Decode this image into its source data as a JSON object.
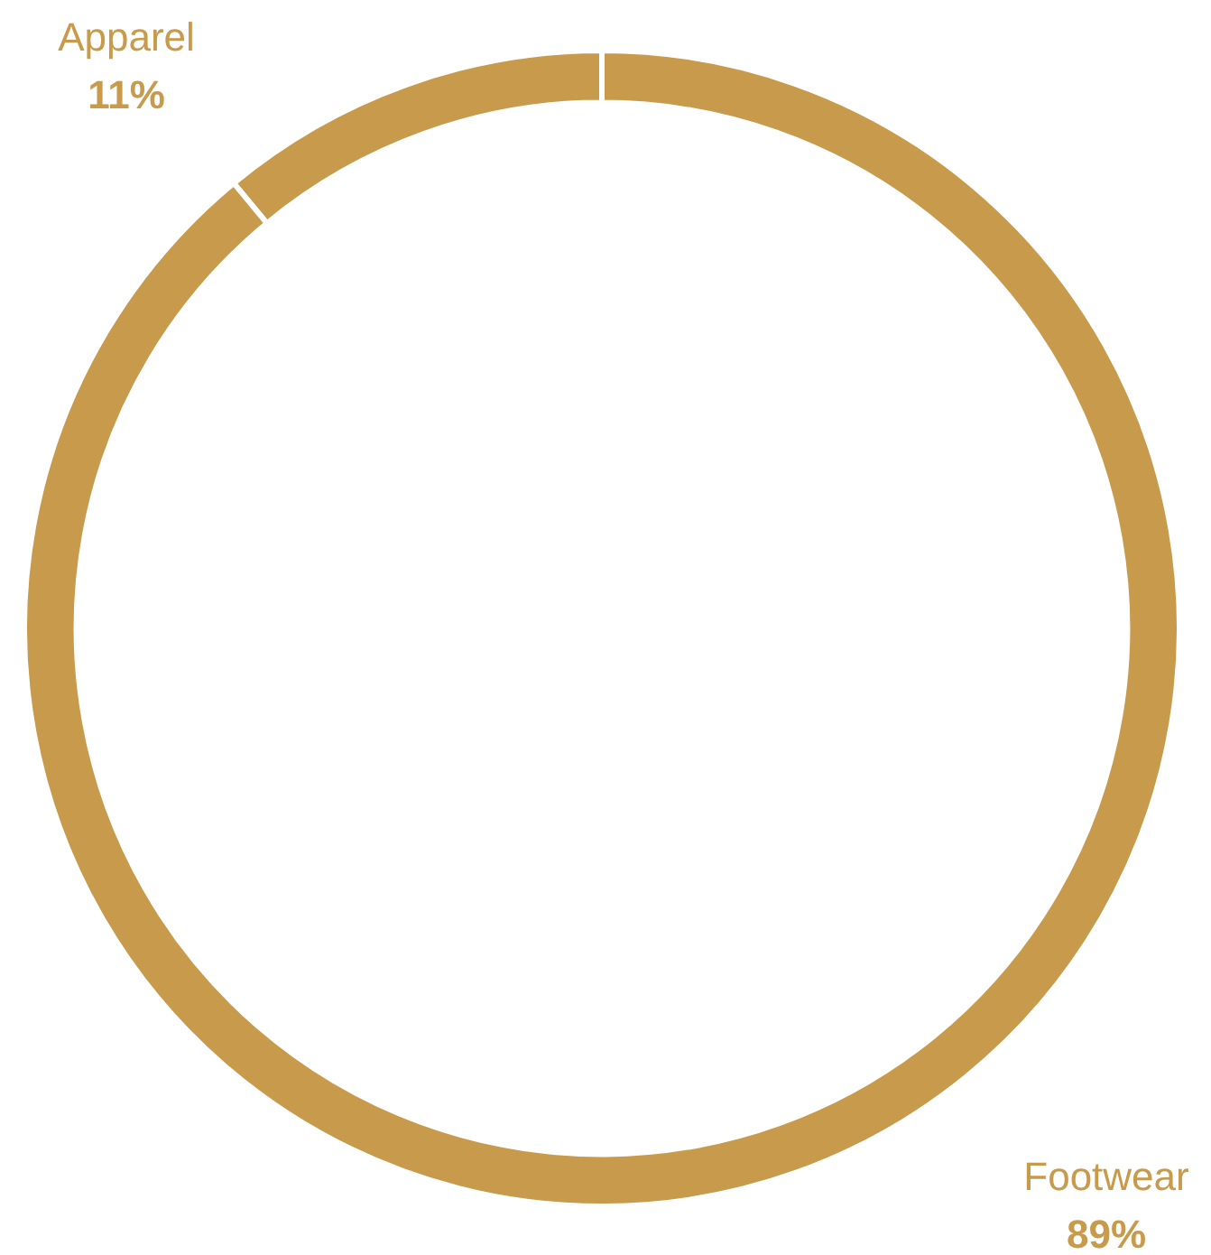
{
  "chart_data": {
    "type": "donut",
    "categories": [
      "Apparel",
      "Footwear"
    ],
    "values": [
      11,
      89
    ],
    "colors": [
      "#c89a4b",
      "#c89a4b"
    ],
    "value_labels": [
      "11%",
      "89%"
    ],
    "legend": false
  }
}
